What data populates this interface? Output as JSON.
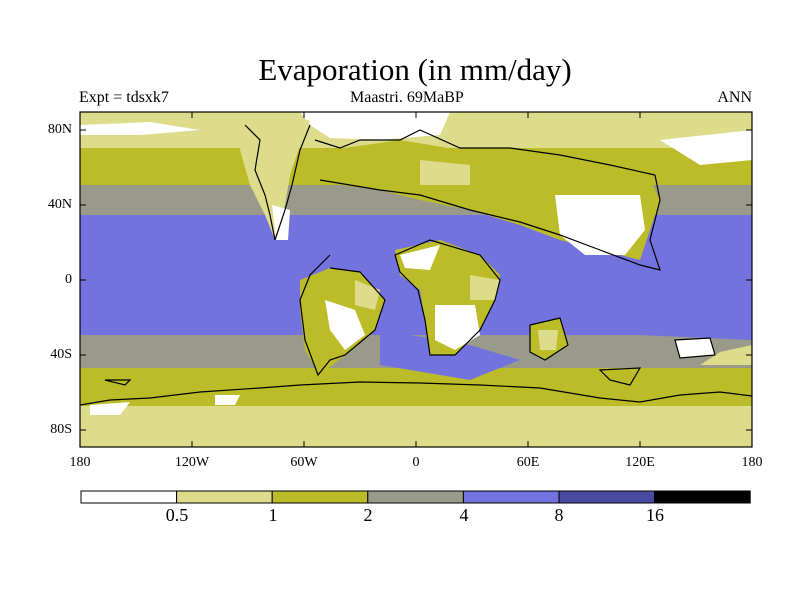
{
  "title": "Evaporation (in mm/day)",
  "subtitle_left": "Expt = tdsxk7",
  "subtitle_center": "Maastri.  69MaBP",
  "subtitle_right": "ANN",
  "y_ticks": [
    "80N",
    "40N",
    "0",
    "40S",
    "80S"
  ],
  "x_ticks": [
    "180",
    "120W",
    "60W",
    "0",
    "60E",
    "120E",
    "180"
  ],
  "colorbar": {
    "colors": [
      "#ffffff",
      "#dcdc8a",
      "#bcbc28",
      "#9a9a8a",
      "#7373e0",
      "#4a4aa0",
      "#000000"
    ],
    "labels": [
      "0.5",
      "1",
      "2",
      "4",
      "8",
      "16"
    ]
  },
  "map": {
    "projection": "cylindrical-equidistant",
    "lon_range": [
      -180,
      180
    ],
    "lat_range": [
      -90,
      90
    ]
  }
}
